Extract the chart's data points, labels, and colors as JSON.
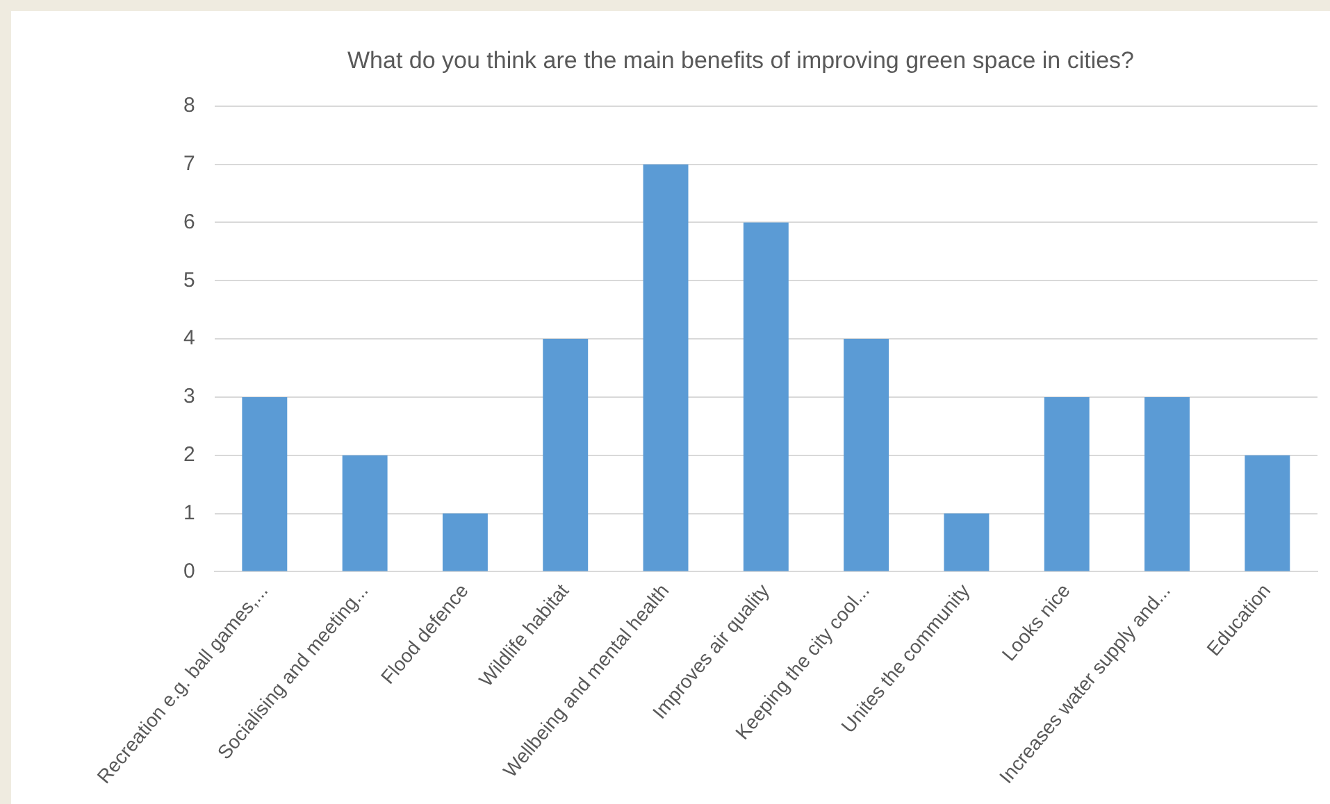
{
  "chart_data": {
    "type": "bar",
    "title": "What do you think are the main benefits of improving green space in cities?",
    "categories": [
      "Recreation e.g. ball games,...",
      "Socialising and meeting...",
      "Flood defence",
      "Wildlife habitat",
      "Wellbeing and mental health",
      "Improves air quality",
      "Keeping the city cool...",
      "Unites the community",
      "Looks nice",
      "Increases water supply and...",
      "Education"
    ],
    "values": [
      3,
      2,
      1,
      4,
      7,
      6,
      4,
      1,
      3,
      3,
      2
    ],
    "color": "#5b9bd5",
    "ylim": [
      0,
      8
    ],
    "yticks": [
      0,
      1,
      2,
      3,
      4,
      5,
      6,
      7,
      8
    ],
    "grid": "y",
    "legend": false
  }
}
